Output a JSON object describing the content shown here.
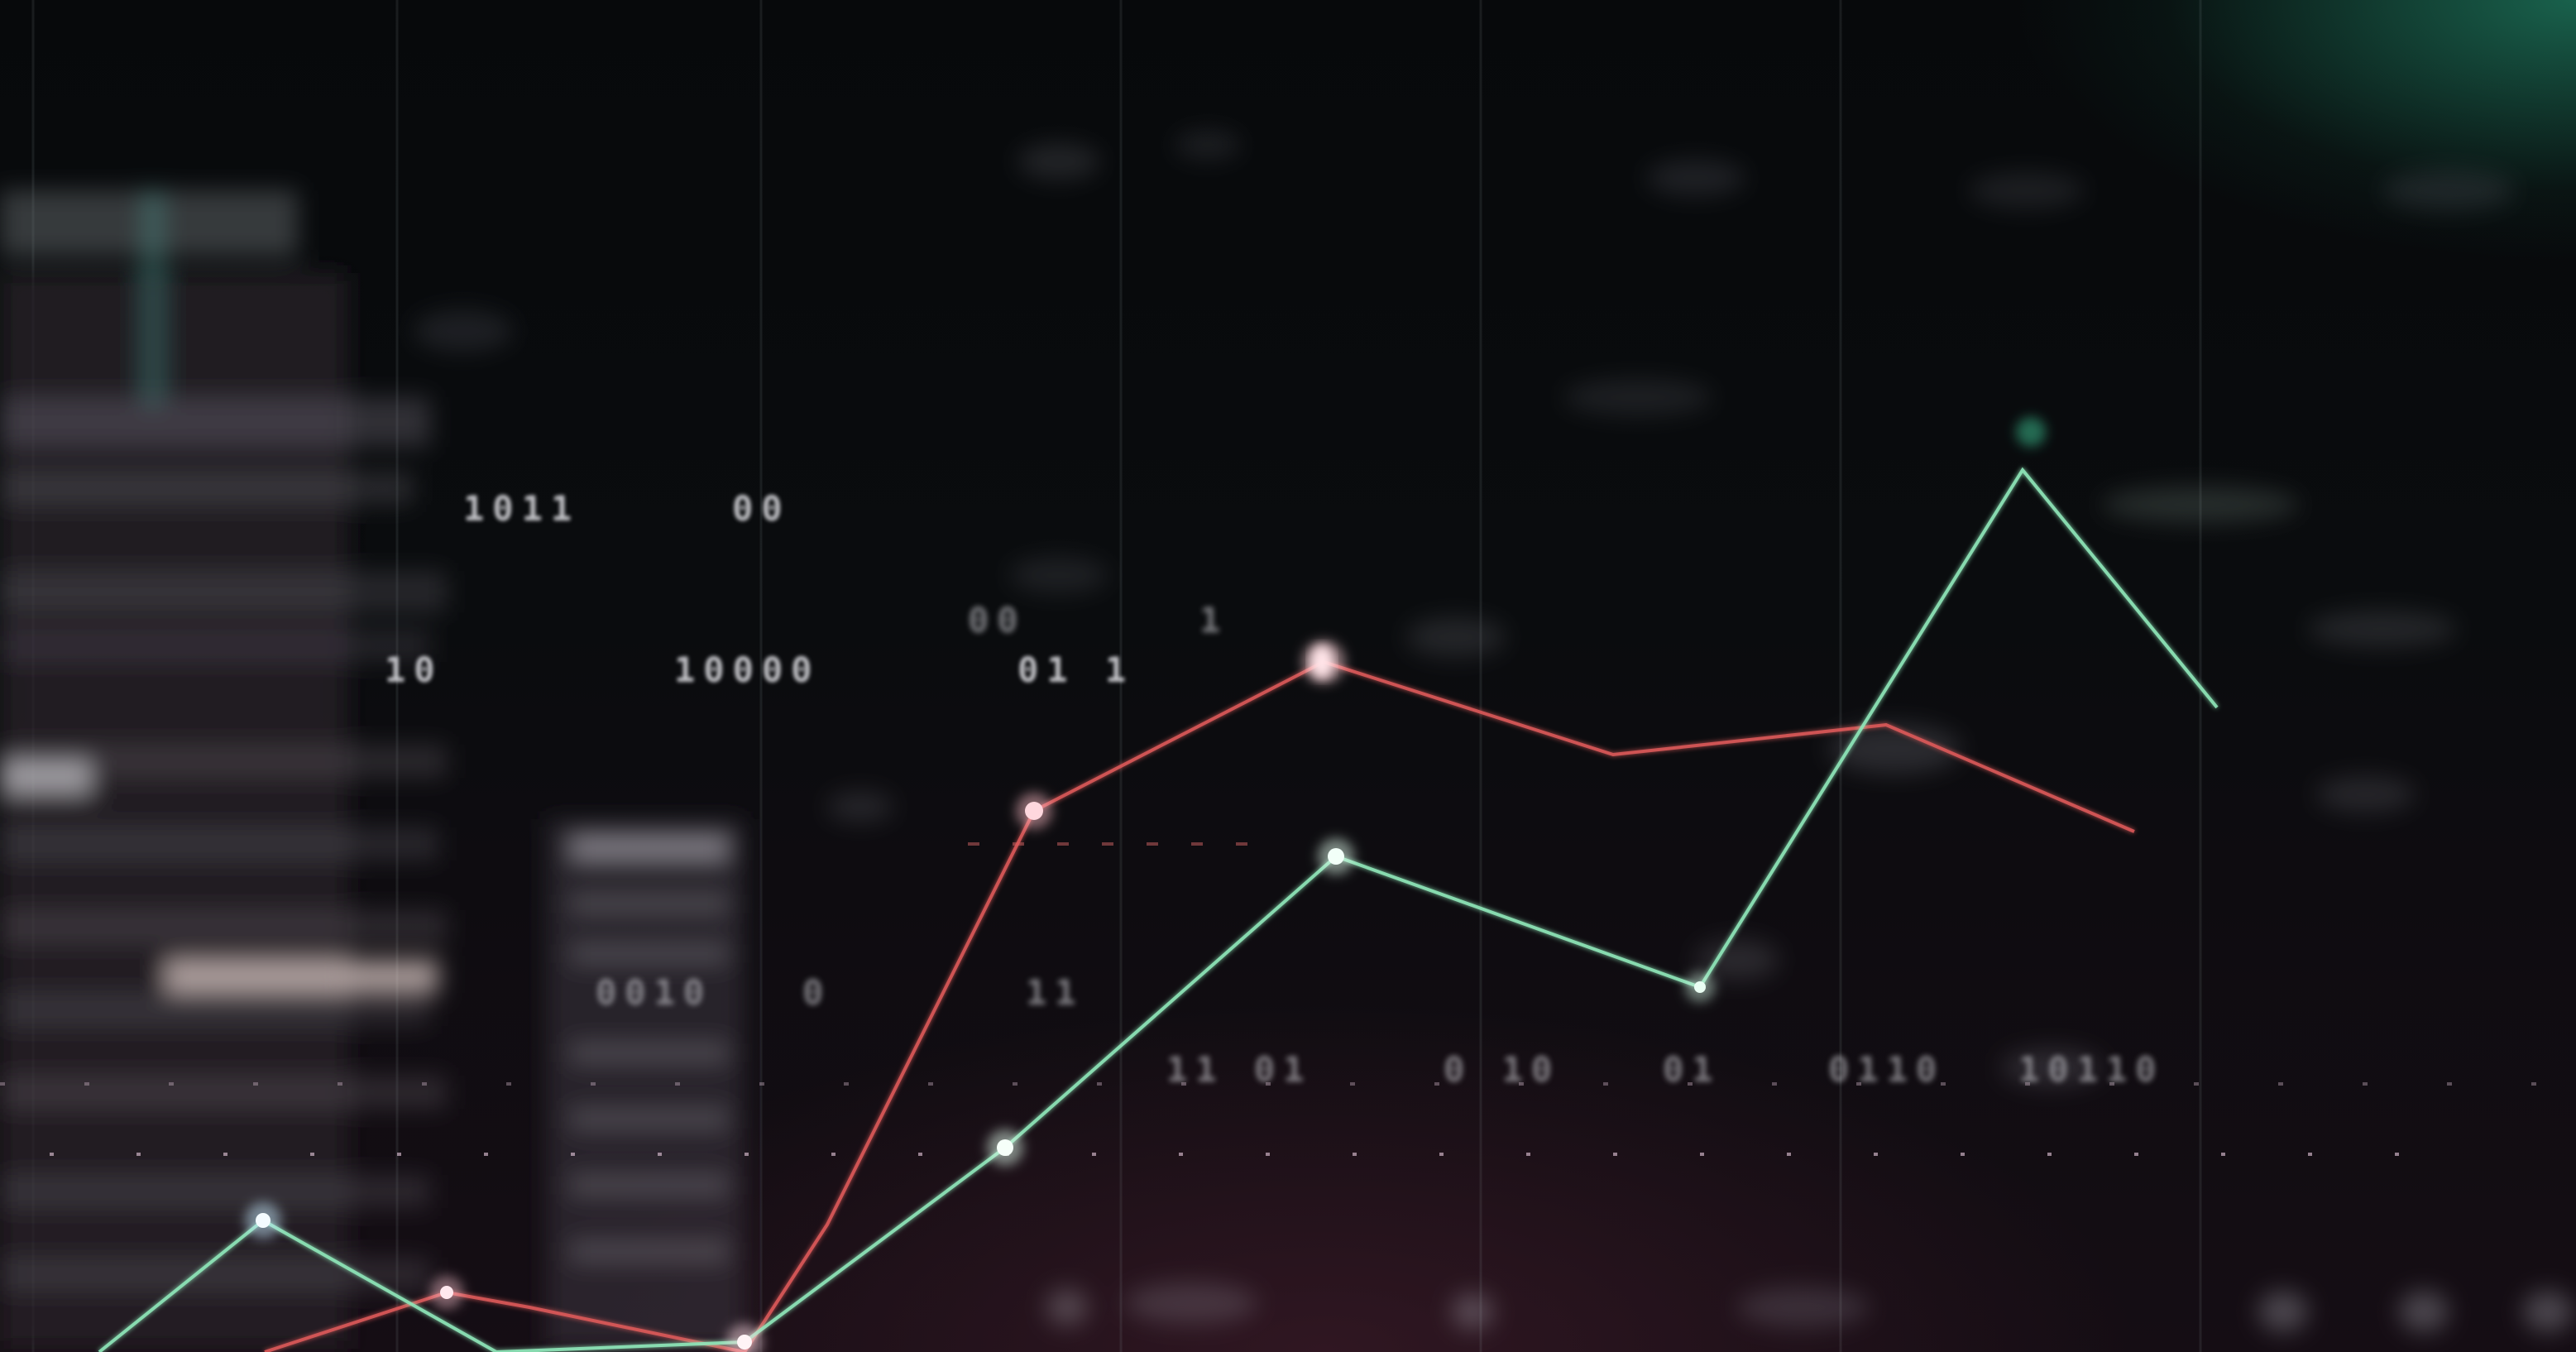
{
  "overlay_text": {
    "row1_a": "1011",
    "row1_b": "00",
    "row2_a": "00",
    "row2_b": "1",
    "row3_a": "10",
    "row3_b": "10000",
    "row3_c": "01 1",
    "row4_a": "0010",
    "row4_b": "0",
    "row4_c": "11",
    "row5_a": "11 01",
    "row5_b": "0 10",
    "row5_c": "01",
    "row5_d": "0110",
    "row5_e": "10110"
  },
  "colors": {
    "green_line": "#8ee6b8",
    "red_line": "#e05a5a",
    "glow_teal": "#2fb38a",
    "background": "#06080a"
  },
  "lines": {
    "green_series_shape": "rises from lower left, peaks near right, then drops",
    "red_series_shape": "rises from lower middle, plateaus, then declines on right"
  }
}
